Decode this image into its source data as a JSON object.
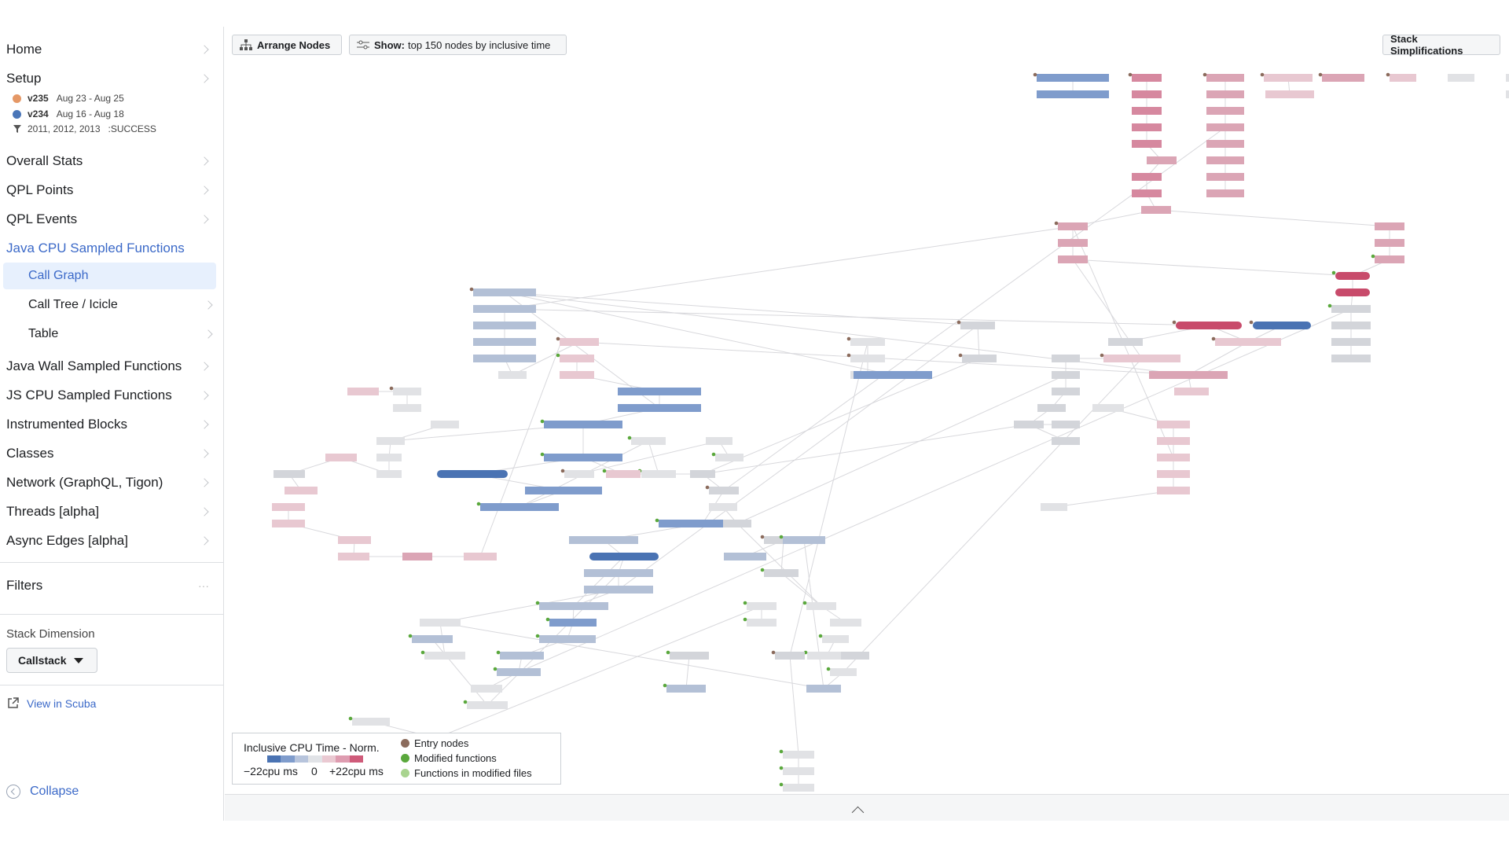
{
  "sidebar": {
    "home": "Home",
    "setup": {
      "label": "Setup",
      "versions": [
        {
          "name": "v235",
          "range": "Aug 23 - Aug 25",
          "color": "#e59866"
        },
        {
          "name": "v234",
          "range": "Aug 16 - Aug 18",
          "color": "#4a76b8"
        }
      ],
      "filter_text": "2011, 2012, 2013",
      "filter_status": ":SUCCESS"
    },
    "items_top": [
      "Overall Stats",
      "QPL Points",
      "QPL Events"
    ],
    "active_section": "Java CPU Sampled Functions",
    "sub_items": [
      "Call Graph",
      "Call Tree / Icicle",
      "Table"
    ],
    "items_bottom": [
      "Java Wall Sampled Functions",
      "JS CPU Sampled Functions",
      "Instrumented Blocks",
      "Classes",
      "Network (GraphQL, Tigon)",
      "Threads [alpha]",
      "Async Edges [alpha]"
    ],
    "filters_label": "Filters",
    "filters_more": "···",
    "stack_dimension_label": "Stack Dimension",
    "stack_dimension_value": "Callstack",
    "view_in_scuba": "View in Scuba",
    "collapse": "Collapse"
  },
  "toolbar": {
    "arrange_nodes": "Arrange Nodes",
    "show_label": "Show:",
    "show_value": "top 150 nodes by inclusive time",
    "stack_simplifications": "Stack Simplifications"
  },
  "legend": {
    "title": "Inclusive CPU Time - Norm.",
    "min": "−22cpu ms",
    "zero": "0",
    "max": "+22cpu ms",
    "gradient": [
      "#4a73b3",
      "#7f9ccc",
      "#b7c4dc",
      "#e1e3e7",
      "#eac9d2",
      "#de9cb0",
      "#cf5b7a"
    ],
    "entries": [
      {
        "label": "Entry nodes",
        "color": "#8b6b5c"
      },
      {
        "label": "Modified functions",
        "color": "#5aa83c"
      },
      {
        "label": "Functions in modified files",
        "color": "#a9d48f"
      }
    ]
  },
  "graph": {
    "colors": {
      "bs": "#4a73b3",
      "bm": "#7f9ccc",
      "bl": "#b3c0d6",
      "g": "#d3d5da",
      "gl": "#e1e2e5",
      "pl": "#e8c8d1",
      "pm": "#dba5b5",
      "ps": "#d6889f",
      "r": "#c84b6b",
      "edge": "#d8d8dc",
      "entry": "#8b6b5c",
      "mod": "#5aa83c",
      "modf": "#a9d48f"
    }
  }
}
